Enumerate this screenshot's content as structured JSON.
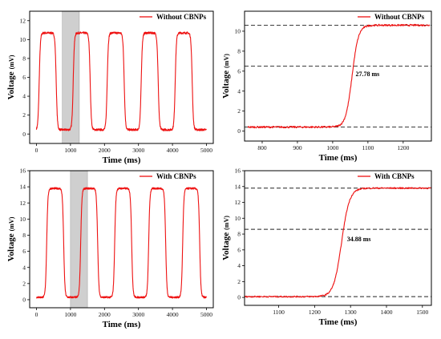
{
  "colors": {
    "series": "#ee1111",
    "highlight": "#cfcfcf",
    "axis": "#000000",
    "guide": "#222222"
  },
  "chart_data": [
    {
      "id": "a",
      "type": "line",
      "legend": "Without CBNPs",
      "legend_position": "top-right",
      "xlabel": "Time (ms)",
      "ylabel": "Voltage",
      "ylabel_unit": "(mV)",
      "xlim": [
        -200,
        5200
      ],
      "ylim": [
        -1,
        13
      ],
      "xticks": [
        0,
        1000,
        2000,
        3000,
        4000,
        5000
      ],
      "xticklabels": [
        "0",
        "1000",
        "2000",
        "3000",
        "4000",
        "5000"
      ],
      "yticks": [
        0,
        2,
        4,
        6,
        8,
        10,
        12
      ],
      "yticklabels": [
        "0",
        "2",
        "4",
        "6",
        "8",
        "10",
        "12"
      ],
      "highlight_x": [
        760,
        1260
      ],
      "waveform": {
        "low": 0.45,
        "high": 10.7,
        "first_rise": 80,
        "period": 1000,
        "high_duration": 500,
        "end": 5000,
        "final_end": 4950
      }
    },
    {
      "id": "b",
      "type": "line",
      "legend": "Without CBNPs",
      "legend_position": "top-right",
      "xlabel": "Time (ms)",
      "ylabel": "Voltage",
      "ylabel_unit": "(mV)",
      "xlim": [
        750,
        1280
      ],
      "ylim": [
        -1,
        12
      ],
      "xticks": [
        800,
        900,
        1000,
        1100,
        1200
      ],
      "xticklabels": [
        "800",
        "900",
        "1000",
        "1100",
        "1200"
      ],
      "yticks": [
        0,
        2,
        4,
        6,
        8,
        10
      ],
      "yticklabels": [
        "0",
        "2",
        "4",
        "6",
        "8",
        "10"
      ],
      "guides_y": [
        0.4,
        6.5,
        10.6
      ],
      "annotation": {
        "text": "27.78 ms",
        "x": 1065,
        "y": 5.5
      },
      "edge": {
        "low": 0.4,
        "high": 10.6,
        "center": 1055,
        "width": 9,
        "start": 760,
        "end": 1275
      }
    },
    {
      "id": "c",
      "type": "line",
      "legend": "With CBNPs",
      "legend_position": "top-right",
      "xlabel": "Time (ms)",
      "ylabel": "Voltage",
      "ylabel_unit": "(mV)",
      "xlim": [
        -200,
        5200
      ],
      "ylim": [
        -1,
        16
      ],
      "xticks": [
        0,
        1000,
        2000,
        3000,
        4000,
        5000
      ],
      "xticklabels": [
        "0",
        "1000",
        "2000",
        "3000",
        "4000",
        "5000"
      ],
      "yticks": [
        0,
        2,
        4,
        6,
        8,
        10,
        12,
        14,
        16
      ],
      "yticklabels": [
        "0",
        "2",
        "4",
        "6",
        "8",
        "10",
        "12",
        "14",
        "16"
      ],
      "highlight_x": [
        1000,
        1500
      ],
      "waveform": {
        "low": 0.3,
        "high": 13.8,
        "first_rise": 300,
        "period": 1000,
        "high_duration": 500,
        "end": 5000,
        "final_end": 4950
      }
    },
    {
      "id": "d",
      "type": "line",
      "legend": "With CBNPs",
      "legend_position": "top-right",
      "xlabel": "Time (ms)",
      "ylabel": "Voltage",
      "ylabel_unit": "(mV)",
      "xlim": [
        1005,
        1525
      ],
      "ylim": [
        -1,
        16
      ],
      "xticks": [
        1100,
        1200,
        1300,
        1400,
        1500
      ],
      "xticklabels": [
        "1100",
        "1200",
        "1300",
        "1400",
        "1500"
      ],
      "yticks": [
        0,
        2,
        4,
        6,
        8,
        10,
        12,
        14,
        16
      ],
      "yticklabels": [
        "0",
        "2",
        "4",
        "6",
        "8",
        "10",
        "12",
        "14",
        "16"
      ],
      "guides_y": [
        0.1,
        8.6,
        13.8
      ],
      "annotation": {
        "text": "34.88 ms",
        "x": 1290,
        "y": 7.1
      },
      "edge": {
        "low": 0.1,
        "high": 13.8,
        "center": 1275,
        "width": 11,
        "start": 1005,
        "end": 1525
      }
    }
  ]
}
